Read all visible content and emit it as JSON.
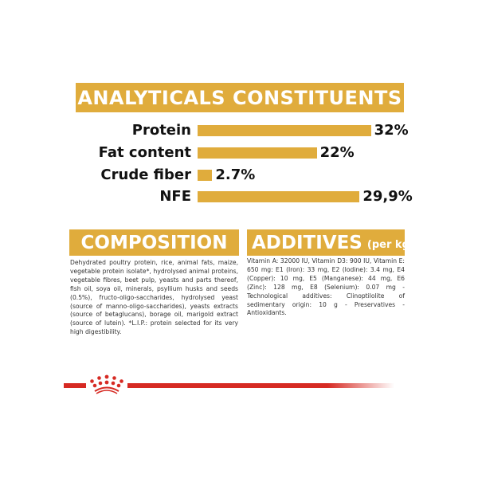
{
  "analytical": {
    "title": "ANALYTICALS CONSTITUENTS",
    "rows": [
      {
        "label": "Protein",
        "value": 32,
        "value_label": "32%"
      },
      {
        "label": "Fat content",
        "value": 22,
        "value_label": "22%"
      },
      {
        "label": "Crude fiber",
        "value": 2.7,
        "value_label": "2.7%"
      },
      {
        "label": "NFE",
        "value": 29.9,
        "value_label": "29,9%"
      }
    ],
    "bar_color": "#e0ac3c"
  },
  "composition": {
    "title": "COMPOSITION",
    "text": "Dehydrated poultry protein, rice, animal fats, maize, vegetable protein isolate*, hydrolysed animal proteins, vegetable fibres, beet pulp, yeasts and parts thereof, fish oil, soya oil, minerals, psyllium husks and seeds (0.5%), fructo-oligo-saccharides, hydrolysed yeast (source of manno-oligo-saccharides), yeasts extracts (source of betaglucans), borage oil, marigold extract (source of lutein). *L.I.P.: protein selected for its very high digestibility."
  },
  "additives": {
    "title": "ADDITIVES",
    "unit": "(per kg)",
    "text": "Vitamin A: 32000 IU, Vitamin D3: 900 IU, Vitamin E: 650 mg: E1 (Iron): 33 mg, E2 (Iodine): 3.4 mg, E4 (Copper): 10 mg, E5 (Manganese): 44 mg, E6 (Zinc): 128 mg, E8 (Selenium): 0.07 mg - Technological additives: Clinoptilolite of sedimentary origin: 10 g - Preservatives - Antioxidants."
  },
  "brand": {
    "logo": "crown-icon",
    "color": "#d62a23"
  }
}
